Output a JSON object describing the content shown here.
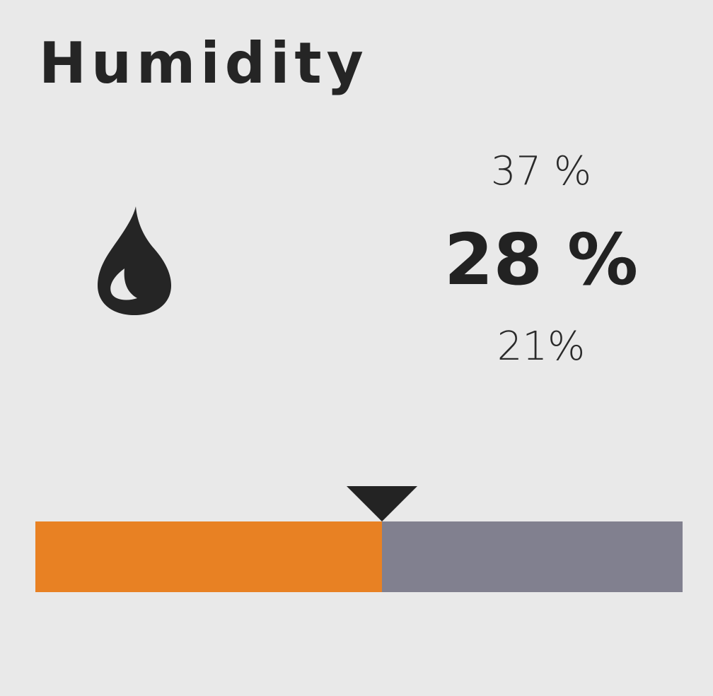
{
  "widget": {
    "title": "Humidity",
    "icon": "water-drop-icon",
    "max_text": "37 %",
    "current_text": "28 %",
    "min_text": "21%"
  },
  "gauge": {
    "level_percent": 53.5,
    "fill_color": "#e88123",
    "track_color": "#81808f",
    "marker_color": "#232323"
  },
  "colors": {
    "background": "#e9e9e9",
    "text": "#222222"
  }
}
